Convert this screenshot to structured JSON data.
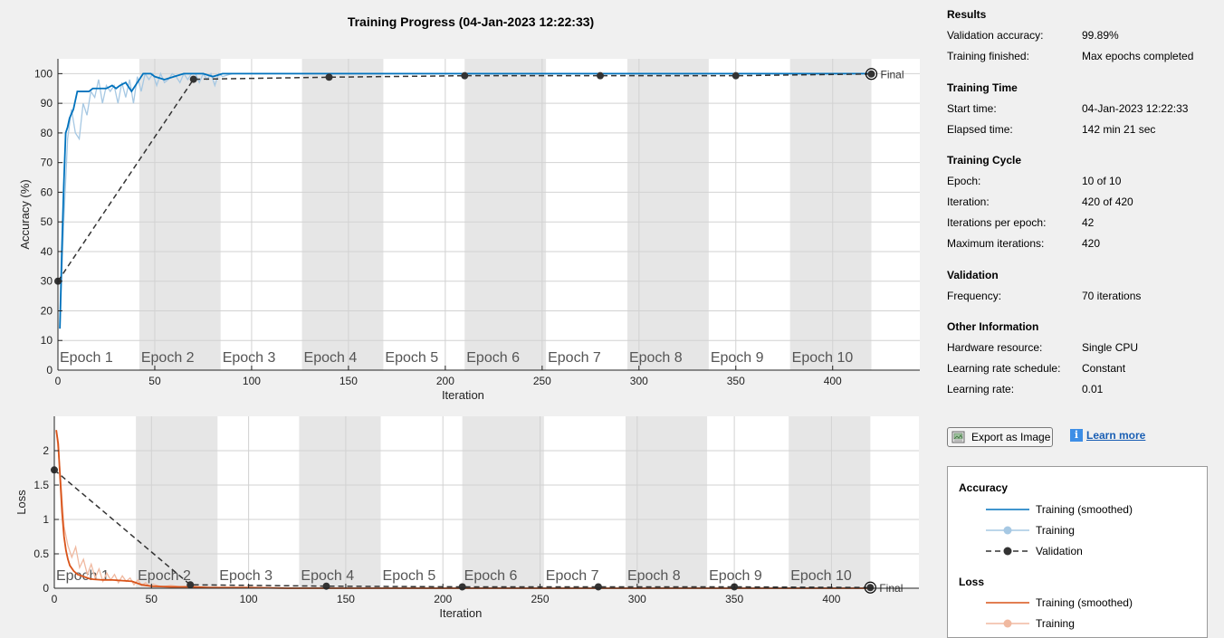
{
  "title": "Training Progress (04-Jan-2023 12:22:33)",
  "colors": {
    "train_smoothed_acc": "#0072bd",
    "train_acc": "#a6c8e3",
    "train_smoothed_loss": "#d95319",
    "train_loss": "#f0b9a0",
    "validation": "#333333",
    "epoch_band": "#e6e6e6"
  },
  "epochs": {
    "labels": [
      "Epoch 1",
      "Epoch 2",
      "Epoch 3",
      "Epoch 4",
      "Epoch 5",
      "Epoch 6",
      "Epoch 7",
      "Epoch 8",
      "Epoch 9",
      "Epoch 10"
    ],
    "iterations_per_epoch": 42
  },
  "final_label": "Final",
  "chart_data": [
    {
      "type": "line",
      "ylabel": "Accuracy (%)",
      "xlabel": "Iteration",
      "xlim": [
        0,
        445
      ],
      "ylim": [
        0,
        105
      ],
      "xticks": [
        0,
        50,
        100,
        150,
        200,
        250,
        300,
        350,
        400
      ],
      "yticks": [
        0,
        10,
        20,
        30,
        40,
        50,
        60,
        70,
        80,
        90,
        100
      ],
      "grid": true,
      "series": [
        {
          "name": "Training (smoothed)",
          "x": [
            1,
            2,
            3,
            4,
            5,
            6,
            8,
            10,
            12,
            14,
            16,
            18,
            20,
            22,
            25,
            28,
            30,
            32,
            35,
            38,
            40,
            42,
            44,
            46,
            48,
            50,
            55,
            60,
            65,
            70,
            75,
            80,
            85,
            90,
            95,
            100,
            110,
            120,
            130,
            140,
            150,
            170,
            200,
            250,
            300,
            350,
            420
          ],
          "y": [
            14,
            40,
            62,
            80,
            82,
            85,
            88,
            94,
            94,
            94,
            94,
            95,
            95,
            95,
            95,
            96,
            95,
            96,
            97,
            94,
            96,
            98,
            100,
            100,
            100,
            99,
            98,
            99,
            100,
            100,
            100,
            99,
            100,
            100,
            100,
            100,
            100,
            100,
            100,
            100,
            100,
            100,
            100,
            100,
            100,
            100,
            100
          ]
        },
        {
          "name": "Training",
          "x": [
            1,
            3,
            5,
            7,
            9,
            11,
            13,
            15,
            17,
            19,
            21,
            23,
            25,
            27,
            29,
            31,
            33,
            35,
            37,
            39,
            41,
            43,
            45,
            47,
            49,
            51,
            53,
            55,
            57,
            59,
            61,
            63,
            65,
            67,
            69,
            71,
            73,
            75,
            77,
            79,
            81,
            83,
            85,
            90,
            100,
            120,
            150,
            200,
            300,
            420
          ],
          "y": [
            14,
            50,
            78,
            88,
            80,
            78,
            90,
            86,
            94,
            92,
            98,
            90,
            96,
            94,
            96,
            90,
            97,
            92,
            98,
            90,
            99,
            94,
            100,
            98,
            100,
            96,
            100,
            97,
            98,
            100,
            99,
            97,
            100,
            98,
            100,
            100,
            97,
            100,
            98,
            100,
            96,
            100,
            99,
            100,
            100,
            100,
            100,
            100,
            100,
            100
          ]
        },
        {
          "name": "Validation",
          "x": [
            0,
            70,
            140,
            210,
            280,
            350,
            420
          ],
          "y": [
            30,
            98.1,
            98.8,
            99.3,
            99.3,
            99.3,
            99.89
          ]
        }
      ]
    },
    {
      "type": "line",
      "ylabel": "Loss",
      "xlabel": "Iteration",
      "xlim": [
        0,
        445
      ],
      "ylim": [
        0,
        2.5
      ],
      "xticks": [
        0,
        50,
        100,
        150,
        200,
        250,
        300,
        350,
        400
      ],
      "yticks": [
        0,
        0.5,
        1,
        1.5,
        2
      ],
      "grid": true,
      "series": [
        {
          "name": "Training (smoothed)",
          "x": [
            1,
            2,
            3,
            4,
            5,
            6,
            7,
            8,
            10,
            12,
            15,
            18,
            20,
            25,
            30,
            35,
            40,
            45,
            50,
            60,
            70,
            80,
            90,
            100,
            120,
            150,
            200,
            300,
            420
          ],
          "y": [
            2.3,
            2.1,
            1.6,
            1.1,
            0.75,
            0.55,
            0.42,
            0.33,
            0.25,
            0.2,
            0.17,
            0.14,
            0.13,
            0.12,
            0.12,
            0.11,
            0.1,
            0.05,
            0.03,
            0.02,
            0.02,
            0.01,
            0.01,
            0.01,
            0.0,
            0.0,
            0.0,
            0.0,
            0.0
          ]
        },
        {
          "name": "Training",
          "x": [
            1,
            3,
            5,
            7,
            9,
            11,
            13,
            15,
            17,
            19,
            21,
            23,
            25,
            27,
            29,
            31,
            33,
            35,
            37,
            39,
            41,
            43,
            45,
            47,
            49,
            51,
            55,
            60,
            65,
            70,
            80,
            90,
            100,
            150,
            200,
            300,
            420
          ],
          "y": [
            2.3,
            1.7,
            0.9,
            0.62,
            0.45,
            0.6,
            0.3,
            0.42,
            0.2,
            0.35,
            0.15,
            0.28,
            0.1,
            0.22,
            0.12,
            0.2,
            0.08,
            0.18,
            0.1,
            0.15,
            0.05,
            0.12,
            0.04,
            0.08,
            0.03,
            0.06,
            0.02,
            0.04,
            0.02,
            0.03,
            0.01,
            0.01,
            0.01,
            0.0,
            0.0,
            0.0,
            0.0
          ]
        },
        {
          "name": "Validation",
          "x": [
            0,
            70,
            140,
            210,
            280,
            350,
            420
          ],
          "y": [
            1.72,
            0.05,
            0.03,
            0.02,
            0.02,
            0.02,
            0.01
          ]
        }
      ]
    }
  ],
  "sidebar": {
    "results": {
      "title": "Results",
      "rows": [
        {
          "k": "Validation accuracy:",
          "v": "99.89%"
        },
        {
          "k": "Training finished:",
          "v": "Max epochs completed"
        }
      ]
    },
    "time": {
      "title": "Training Time",
      "rows": [
        {
          "k": "Start time:",
          "v": "04-Jan-2023 12:22:33"
        },
        {
          "k": "Elapsed time:",
          "v": "142 min 21 sec"
        }
      ]
    },
    "cycle": {
      "title": "Training Cycle",
      "rows": [
        {
          "k": "Epoch:",
          "v": "10 of 10"
        },
        {
          "k": "Iteration:",
          "v": "420 of 420"
        },
        {
          "k": "Iterations per epoch:",
          "v": "42"
        },
        {
          "k": "Maximum iterations:",
          "v": "420"
        }
      ]
    },
    "validation": {
      "title": "Validation",
      "rows": [
        {
          "k": "Frequency:",
          "v": "70 iterations"
        }
      ]
    },
    "other": {
      "title": "Other Information",
      "rows": [
        {
          "k": "Hardware resource:",
          "v": "Single CPU"
        },
        {
          "k": "Learning rate schedule:",
          "v": "Constant"
        },
        {
          "k": "Learning rate:",
          "v": "0.01"
        }
      ]
    }
  },
  "buttons": {
    "export": "Export as Image",
    "learn_more": "Learn more"
  },
  "legend": {
    "accuracy_title": "Accuracy",
    "loss_title": "Loss",
    "items": {
      "train_smoothed": "Training (smoothed)",
      "train": "Training",
      "validation": "Validation"
    }
  }
}
